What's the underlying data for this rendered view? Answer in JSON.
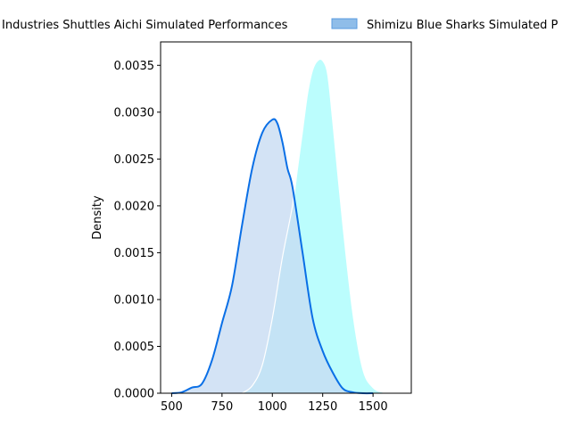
{
  "chart_data": {
    "type": "area",
    "ylabel": "Density",
    "xlabel": "",
    "xlim": [
      445,
      1690
    ],
    "ylim": [
      0,
      0.00375
    ],
    "x_ticks": [
      500,
      750,
      1000,
      1250,
      1500
    ],
    "x_tick_labels": [
      "500",
      "750",
      "1000",
      "1250",
      "1500"
    ],
    "y_ticks": [
      0,
      0.0005,
      0.001,
      0.0015,
      0.002,
      0.0025,
      0.003,
      0.0035
    ],
    "y_tick_labels": [
      "0.0000",
      "0.0005",
      "0.0010",
      "0.0015",
      "0.0020",
      "0.0025",
      "0.0030",
      "0.0035"
    ],
    "legend_position": "top",
    "grid": false,
    "series": [
      {
        "name": "Toyota Industries Shuttles Aichi Simulated Performances",
        "legend_label": "Industries Shuttles Aichi Simulated Performances",
        "line_color": "#0a6fe6",
        "fill_color": "#c6dbf2",
        "x": [
          500,
          550,
          600,
          650,
          700,
          750,
          800,
          850,
          900,
          950,
          1000,
          1025,
          1050,
          1075,
          1100,
          1150,
          1200,
          1250,
          1300,
          1350,
          1400,
          1450,
          1500
        ],
        "y": [
          0.0,
          1e-05,
          6e-05,
          0.0001,
          0.00035,
          0.00075,
          0.00115,
          0.0018,
          0.0024,
          0.00278,
          0.00292,
          0.00288,
          0.00268,
          0.0024,
          0.0022,
          0.0015,
          0.0008,
          0.00045,
          0.00022,
          5e-05,
          1e-05,
          0.0,
          0.0
        ]
      },
      {
        "name": "Shimizu Blue Sharks Simulated Performances",
        "legend_label": "Shimizu Blue Sharks Simulated P",
        "line_color": "#ffffff",
        "fill_color": "#b7fdfd",
        "legend_patch_color": "#8fbde9",
        "x": [
          850,
          900,
          950,
          1000,
          1050,
          1100,
          1125,
          1150,
          1175,
          1200,
          1225,
          1250,
          1275,
          1300,
          1350,
          1400,
          1450,
          1500,
          1550,
          1600
        ],
        "y": [
          0.0,
          8e-05,
          0.0003,
          0.0008,
          0.00145,
          0.002,
          0.0024,
          0.0028,
          0.0032,
          0.00345,
          0.00355,
          0.00355,
          0.0034,
          0.0029,
          0.0018,
          0.00085,
          0.00025,
          6e-05,
          1e-05,
          0.0
        ]
      }
    ]
  }
}
